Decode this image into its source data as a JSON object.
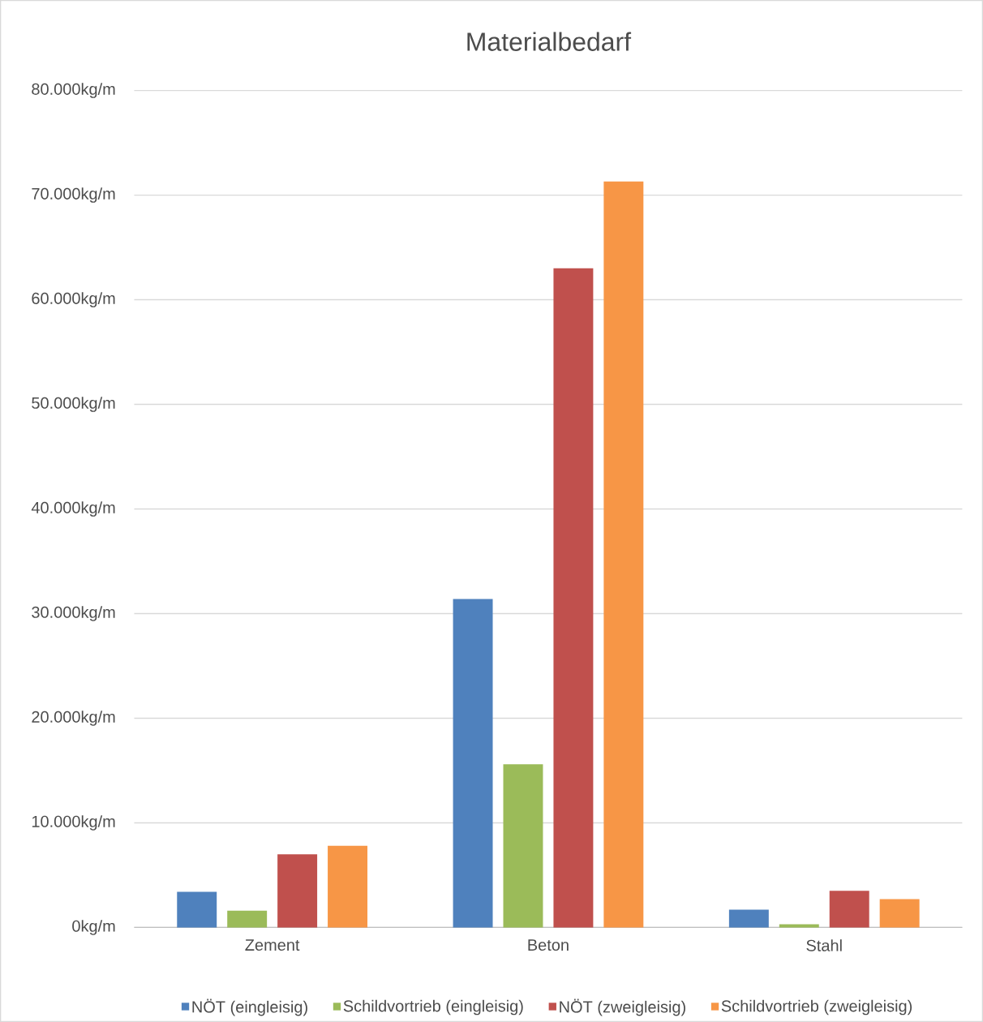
{
  "chart_data": {
    "type": "bar",
    "title": "Materialbedarf",
    "categories": [
      "Zement",
      "Beton",
      "Stahl"
    ],
    "series": [
      {
        "name": "NÖT (eingleisig)",
        "color": "#4f81bd",
        "values": [
          3400,
          31400,
          1700
        ]
      },
      {
        "name": "Schildvortrieb (eingleisig)",
        "color": "#9bbb59",
        "values": [
          1600,
          15600,
          300
        ]
      },
      {
        "name": "NÖT (zweigleisig)",
        "color": "#c0504d",
        "values": [
          7000,
          63000,
          3500
        ]
      },
      {
        "name": "Schildvortrieb (zweigleisig)",
        "color": "#f79646",
        "values": [
          7800,
          71300,
          2700
        ]
      }
    ],
    "ylim": [
      0,
      80000
    ],
    "yticks": [
      {
        "value": 0,
        "label": "0kg/m"
      },
      {
        "value": 10000,
        "label": "10.000kg/m"
      },
      {
        "value": 20000,
        "label": "20.000kg/m"
      },
      {
        "value": 30000,
        "label": "30.000kg/m"
      },
      {
        "value": 40000,
        "label": "40.000kg/m"
      },
      {
        "value": 50000,
        "label": "50.000kg/m"
      },
      {
        "value": 60000,
        "label": "60.000kg/m"
      },
      {
        "value": 70000,
        "label": "70.000kg/m"
      },
      {
        "value": 80000,
        "label": "80.000kg/m"
      }
    ],
    "grid": "y",
    "legend": "bottom"
  }
}
